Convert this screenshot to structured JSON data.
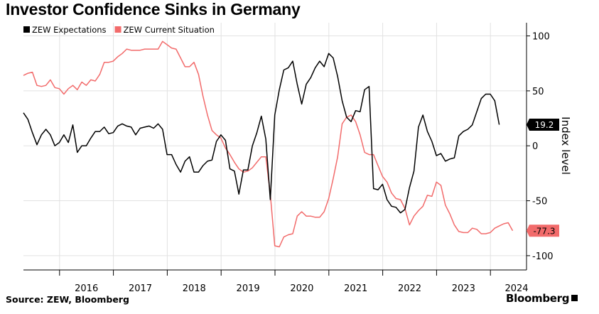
{
  "title": "Investor Confidence Sinks in Germany",
  "source": "Source: ZEW, Bloomberg",
  "brand": "Bloomberg",
  "chart_data": {
    "type": "line",
    "ylabel": "Index level",
    "ylim": [
      -113,
      112
    ],
    "yticks": [
      100,
      50,
      0,
      -50,
      -100
    ],
    "xlim": [
      2015.33,
      2024.67
    ],
    "year_ticks": [
      2016,
      2017,
      2018,
      2019,
      2020,
      2021,
      2022,
      2023,
      2024
    ],
    "grid": true,
    "legend_position": "top-left",
    "last_value_tags": [
      {
        "series": 0,
        "text": "19.2",
        "value": 19.2,
        "bg": "#000000",
        "fg": "#ffffff"
      },
      {
        "series": 1,
        "text": "-77.3",
        "value": -77.3,
        "bg": "#f26b6b",
        "fg": "#000000"
      }
    ],
    "series": [
      {
        "name": "ZEW Expectations",
        "color": "#000000",
        "x_start": 2015.33,
        "x_step": 0.0833333,
        "values": [
          30,
          24,
          12,
          1,
          10,
          15,
          10,
          0,
          3,
          10,
          3,
          19,
          -6,
          0,
          0,
          7,
          13,
          13,
          17,
          11,
          12,
          18,
          20,
          18,
          17,
          10,
          16,
          17,
          18,
          16,
          20,
          15,
          -8,
          -8,
          -17,
          -24,
          -14,
          -10,
          -24,
          -24,
          -18,
          -14,
          -13,
          4,
          10,
          5,
          -21,
          -23,
          -44,
          -22,
          -22,
          0,
          12,
          27,
          6,
          -49,
          28,
          51,
          69,
          71,
          77,
          56,
          38,
          56,
          62,
          71,
          77,
          72,
          84,
          80,
          63,
          41,
          26,
          22,
          32,
          31,
          51,
          54,
          -39,
          -40,
          -35,
          -49,
          -55,
          -56,
          -61,
          -58,
          -38,
          -23,
          17,
          28,
          13,
          4,
          -9,
          -7,
          -14,
          -12,
          -11,
          9,
          13,
          15,
          19,
          31,
          43,
          47,
          47,
          41,
          19.2
        ]
      },
      {
        "name": "ZEW Current Situation",
        "color": "#f26b6b",
        "x_start": 2015.33,
        "x_step": 0.0833333,
        "values": [
          64,
          66,
          67,
          55,
          54,
          55,
          60,
          53,
          52,
          47,
          52,
          55,
          51,
          58,
          55,
          60,
          59,
          65,
          76,
          76,
          77,
          81,
          84,
          88,
          87,
          87,
          87,
          88,
          88,
          88,
          88,
          95,
          92,
          89,
          88,
          80,
          72,
          72,
          76,
          65,
          45,
          28,
          14,
          10,
          7,
          -2,
          -8,
          -15,
          -21,
          -24,
          -23,
          -20,
          -15,
          -10,
          -10,
          -44,
          -91,
          -92,
          -83,
          -81,
          -80,
          -64,
          -60,
          -64,
          -64,
          -65,
          -65,
          -60,
          -48,
          -30,
          -10,
          20,
          26,
          28,
          22,
          10,
          -6,
          -8,
          -8,
          -18,
          -28,
          -33,
          -43,
          -48,
          -49,
          -57,
          -72,
          -64,
          -59,
          -55,
          -45,
          -46,
          -33,
          -36,
          -54,
          -62,
          -72,
          -78,
          -79,
          -79,
          -75,
          -76,
          -80,
          -80,
          -79,
          -75,
          -73,
          -71,
          -70,
          -77.3
        ]
      }
    ]
  }
}
